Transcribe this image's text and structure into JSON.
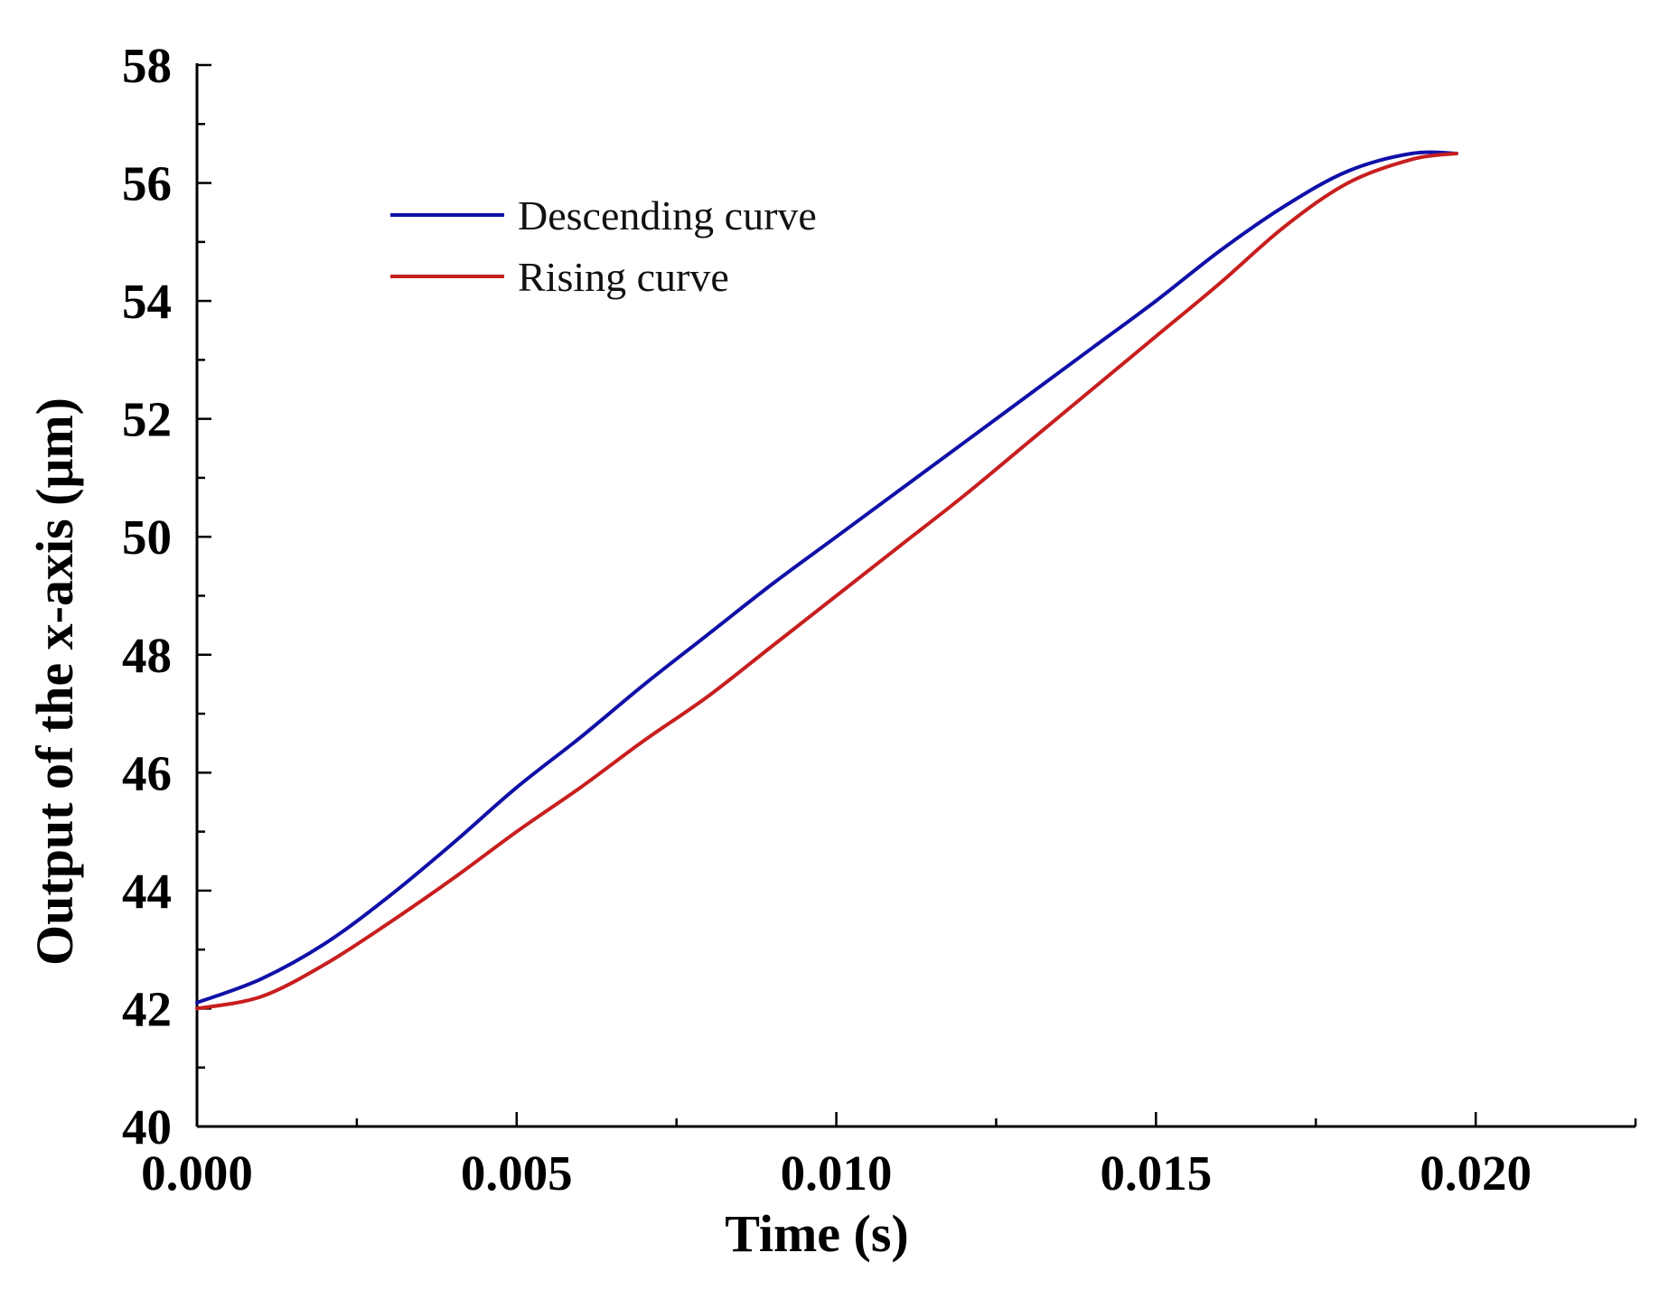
{
  "chart_data": {
    "type": "line",
    "title": "",
    "xlabel": "Time (s)",
    "ylabel": "Output of the x-axis (μm)",
    "xlim": [
      0,
      0.0225
    ],
    "ylim": [
      40,
      58
    ],
    "xticks": [
      0.0,
      0.005,
      0.01,
      0.015,
      0.02
    ],
    "xtick_labels": [
      "0.000",
      "0.005",
      "0.010",
      "0.015",
      "0.020"
    ],
    "xminor": [
      0.0025,
      0.0075,
      0.0125,
      0.0175,
      0.0225
    ],
    "yticks": [
      40,
      42,
      44,
      46,
      48,
      50,
      52,
      54,
      56,
      58
    ],
    "ytick_labels": [
      "40",
      "42",
      "44",
      "46",
      "48",
      "50",
      "52",
      "54",
      "56",
      "58"
    ],
    "yminor": [
      41,
      43,
      45,
      47,
      49,
      51,
      53,
      55,
      57
    ],
    "grid": false,
    "legend_position": "top-left",
    "series": [
      {
        "name": "Descending curve",
        "color": "#1010a8",
        "x": [
          0.0,
          0.001,
          0.002,
          0.003,
          0.004,
          0.005,
          0.006,
          0.007,
          0.008,
          0.009,
          0.01,
          0.011,
          0.012,
          0.013,
          0.014,
          0.015,
          0.016,
          0.017,
          0.018,
          0.019,
          0.0197
        ],
        "y": [
          42.1,
          42.5,
          43.1,
          43.9,
          44.8,
          45.75,
          46.6,
          47.5,
          48.35,
          49.2,
          50.0,
          50.8,
          51.6,
          52.4,
          53.2,
          54.0,
          54.85,
          55.6,
          56.2,
          56.5,
          56.5
        ]
      },
      {
        "name": "Rising curve",
        "color": "#c81e1e",
        "x": [
          0.0,
          0.001,
          0.002,
          0.003,
          0.004,
          0.005,
          0.006,
          0.007,
          0.008,
          0.009,
          0.01,
          0.011,
          0.012,
          0.013,
          0.014,
          0.015,
          0.016,
          0.017,
          0.018,
          0.019,
          0.0197
        ],
        "y": [
          42.0,
          42.2,
          42.75,
          43.45,
          44.2,
          45.0,
          45.75,
          46.55,
          47.3,
          48.15,
          49.0,
          49.85,
          50.7,
          51.6,
          52.5,
          53.4,
          54.3,
          55.25,
          56.0,
          56.4,
          56.5
        ]
      }
    ]
  }
}
